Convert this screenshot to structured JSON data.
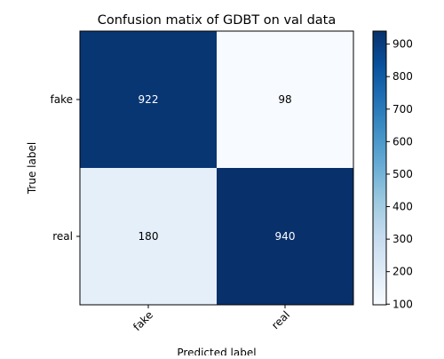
{
  "chart_data": {
    "type": "heatmap",
    "title": "Confusion matix of GDBT on val data",
    "xlabel": "Predicted label",
    "ylabel": "True label",
    "x_categories": [
      "fake",
      "real"
    ],
    "y_categories": [
      "fake",
      "real"
    ],
    "values": [
      [
        922,
        98
      ],
      [
        180,
        940
      ]
    ],
    "colorbar": {
      "min": 98,
      "max": 940,
      "ticks": [
        100,
        200,
        300,
        400,
        500,
        600,
        700,
        800,
        900
      ]
    },
    "colormap": "Blues",
    "x_tick_rotation_deg": 45,
    "grid": false
  }
}
